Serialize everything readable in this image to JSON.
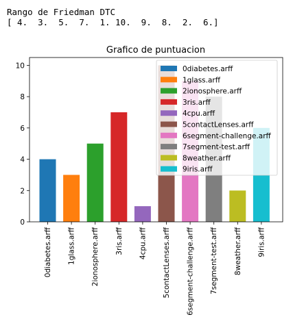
{
  "output": {
    "line1": "Rango de Friedman DTC",
    "line2": "[ 4.  3.  5.  7.  1. 10.  9.  8.  2.  6.]"
  },
  "chart_data": {
    "type": "bar",
    "title": "Grafico de puntuacion",
    "xlabel": "",
    "ylabel": "",
    "ylim": [
      0,
      10.5
    ],
    "yticks": [
      0,
      2,
      4,
      6,
      8,
      10
    ],
    "grid": false,
    "legend_position": "top-right",
    "categories": [
      "0diabetes.arff",
      "1glass.arff",
      "2ionosphere.arff",
      "3ris.arff",
      "4cpu.arff",
      "5contactLenses.arff",
      "6segment-challenge.arff",
      "7segment-test.arff",
      "8weather.arff",
      "9iris.arff"
    ],
    "values": [
      4,
      3,
      5,
      7,
      1,
      10,
      9,
      8,
      2,
      6
    ],
    "colors": [
      "#1f77b4",
      "#ff7f0e",
      "#2ca02c",
      "#d62728",
      "#9467bd",
      "#8c564b",
      "#e377c2",
      "#7f7f7f",
      "#bcbd22",
      "#17becf"
    ],
    "legend": [
      "0diabetes.arff",
      "1glass.arff",
      "2ionosphere.arff",
      "3ris.arff",
      "4cpu.arff",
      "5contactLenses.arff",
      "6segment-challenge.arff",
      "7segment-test.arff",
      "8weather.arff",
      "9iris.arff"
    ]
  }
}
